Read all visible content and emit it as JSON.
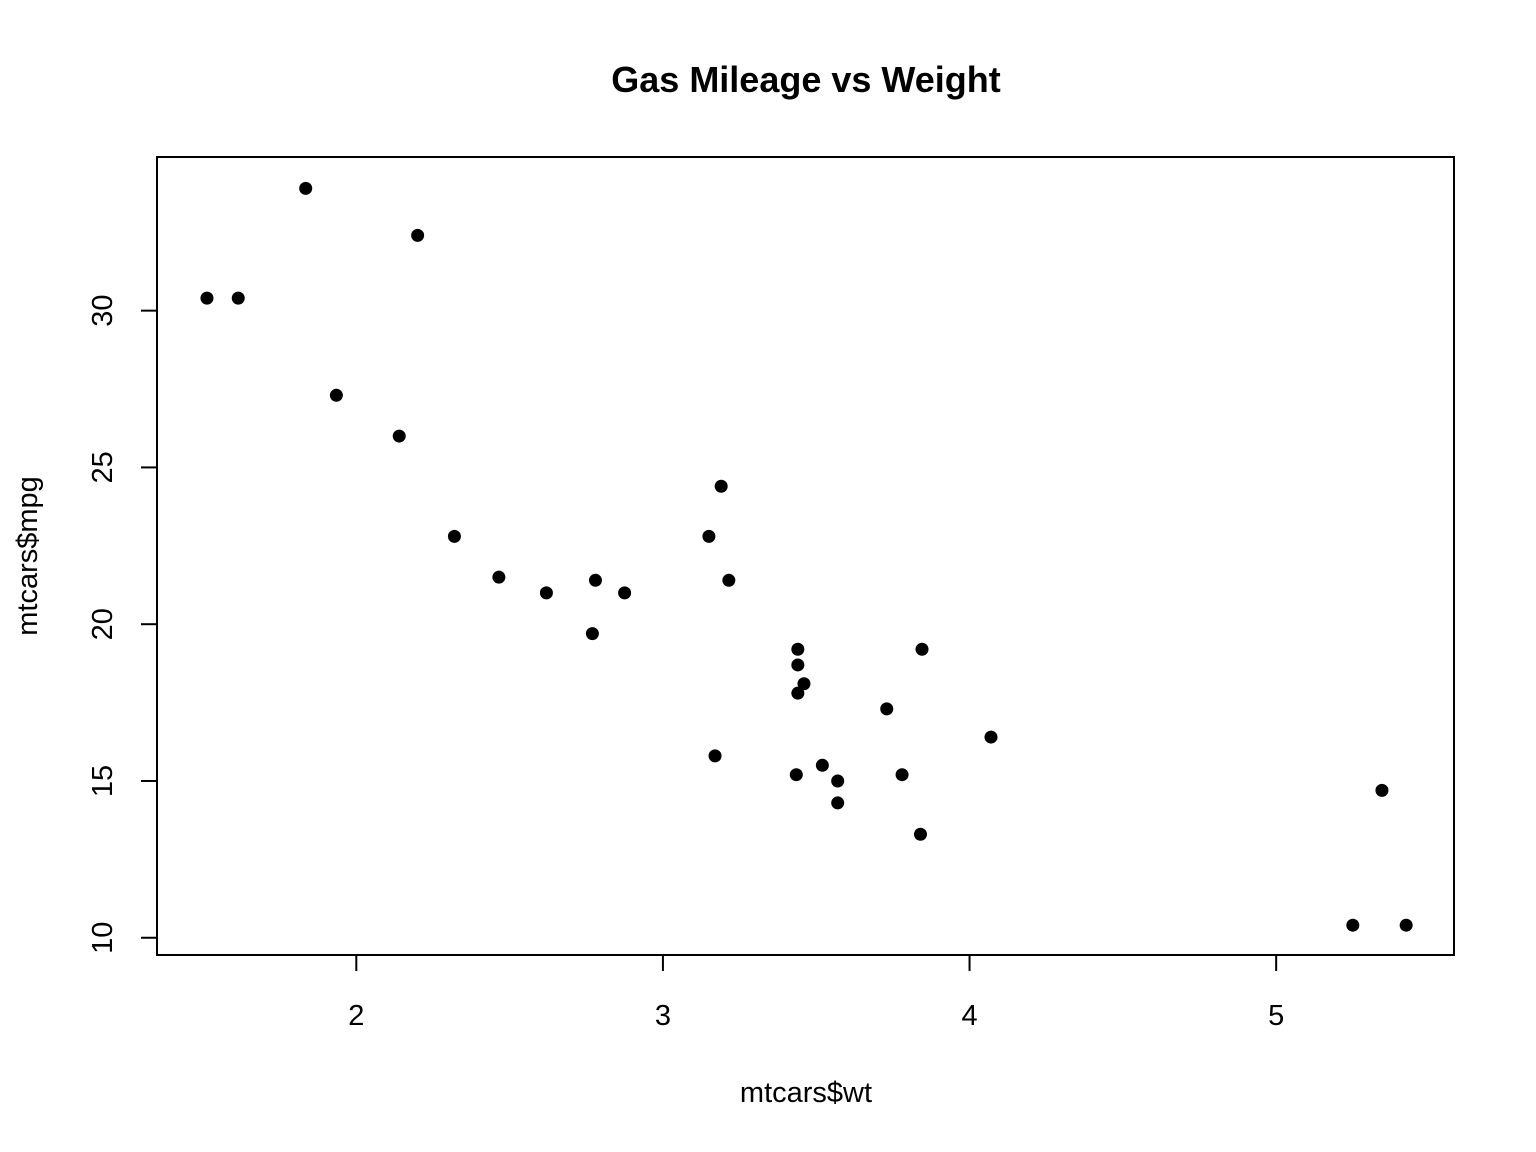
{
  "chart_data": {
    "type": "scatter",
    "title": "Gas Mileage vs Weight",
    "xlabel": "mtcars$wt",
    "ylabel": "mtcars$mpg",
    "xlim": [
      1.35,
      5.58
    ],
    "ylim": [
      9.45,
      34.9
    ],
    "xticks": [
      2,
      3,
      4,
      5
    ],
    "yticks": [
      10,
      15,
      20,
      25,
      30
    ],
    "grid": false,
    "legend": "none",
    "point_color": "#000000",
    "points": [
      {
        "x": 2.62,
        "y": 21.0
      },
      {
        "x": 2.875,
        "y": 21.0
      },
      {
        "x": 2.32,
        "y": 22.8
      },
      {
        "x": 3.215,
        "y": 21.4
      },
      {
        "x": 3.44,
        "y": 18.7
      },
      {
        "x": 3.46,
        "y": 18.1
      },
      {
        "x": 3.57,
        "y": 14.3
      },
      {
        "x": 3.19,
        "y": 24.4
      },
      {
        "x": 3.15,
        "y": 22.8
      },
      {
        "x": 3.44,
        "y": 19.2
      },
      {
        "x": 3.44,
        "y": 17.8
      },
      {
        "x": 4.07,
        "y": 16.4
      },
      {
        "x": 3.73,
        "y": 17.3
      },
      {
        "x": 3.78,
        "y": 15.2
      },
      {
        "x": 5.25,
        "y": 10.4
      },
      {
        "x": 5.424,
        "y": 10.4
      },
      {
        "x": 5.345,
        "y": 14.7
      },
      {
        "x": 2.2,
        "y": 32.4
      },
      {
        "x": 1.615,
        "y": 30.4
      },
      {
        "x": 1.835,
        "y": 33.9
      },
      {
        "x": 2.465,
        "y": 21.5
      },
      {
        "x": 3.52,
        "y": 15.5
      },
      {
        "x": 3.435,
        "y": 15.2
      },
      {
        "x": 3.84,
        "y": 13.3
      },
      {
        "x": 3.845,
        "y": 19.2
      },
      {
        "x": 1.935,
        "y": 27.3
      },
      {
        "x": 2.14,
        "y": 26.0
      },
      {
        "x": 1.513,
        "y": 30.4
      },
      {
        "x": 3.17,
        "y": 15.8
      },
      {
        "x": 2.77,
        "y": 19.7
      },
      {
        "x": 3.57,
        "y": 15.0
      },
      {
        "x": 2.78,
        "y": 21.4
      }
    ]
  }
}
